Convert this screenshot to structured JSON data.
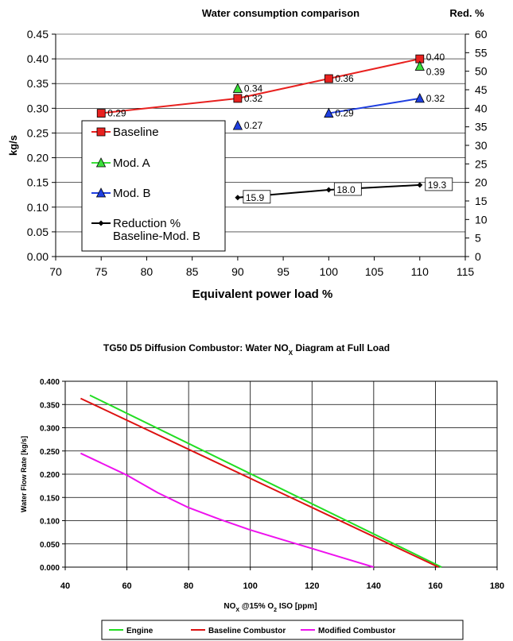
{
  "chart_data": [
    {
      "type": "line",
      "title": "Water consumption comparison",
      "xlabel": "Equivalent power load %",
      "ylabel": "kg/s",
      "y2label": "Red. %",
      "xlim": [
        70,
        115
      ],
      "ylim": [
        0,
        0.45
      ],
      "y2lim": [
        0,
        60
      ],
      "xticks": [
        "70",
        "75",
        "80",
        "85",
        "90",
        "95",
        "100",
        "105",
        "110",
        "115"
      ],
      "yticks": [
        "0.00",
        "0.05",
        "0.10",
        "0.15",
        "0.20",
        "0.25",
        "0.30",
        "0.35",
        "0.40",
        "0.45"
      ],
      "y2ticks": [
        "0",
        "5",
        "10",
        "15",
        "20",
        "25",
        "30",
        "35",
        "40",
        "45",
        "50",
        "55",
        "60"
      ],
      "legend_position": "left",
      "series": [
        {
          "name": "Baseline",
          "color": "#e8211f",
          "marker": "square",
          "axis": "left",
          "points": [
            [
              75,
              0.29
            ],
            [
              90,
              0.32
            ],
            [
              100,
              0.36
            ],
            [
              110,
              0.4
            ]
          ],
          "labels": [
            "0.29",
            "0.32",
            "0.36",
            "0.40"
          ],
          "connected": [
            true,
            true,
            true,
            false
          ]
        },
        {
          "name": "Mod. A",
          "color": "#3adf3a",
          "marker": "triangle",
          "axis": "left",
          "points": [
            [
              90,
              0.34
            ],
            [
              110,
              0.385
            ]
          ],
          "labels": [
            "0.34",
            "0.39"
          ],
          "connected": false
        },
        {
          "name": "Mod. B",
          "color": "#1f3fe0",
          "marker": "triangle",
          "axis": "left",
          "points": [
            [
              90,
              0.265
            ],
            [
              100,
              0.29
            ],
            [
              110,
              0.32
            ]
          ],
          "labels": [
            "0.27",
            "0.29",
            "0.32"
          ],
          "connected": [
            false,
            true,
            true
          ]
        },
        {
          "name": "Reduction %\nBaseline-Mod. B",
          "color": "#000000",
          "marker": "diamond",
          "axis": "right",
          "points": [
            [
              90,
              15.9
            ],
            [
              100,
              18.0
            ],
            [
              110,
              19.3
            ]
          ],
          "labels": [
            "15.9",
            "18.0",
            "19.3"
          ],
          "connected": [
            true,
            true,
            false
          ]
        }
      ]
    },
    {
      "type": "line",
      "title": "TG50 D5 Diffusion Combustor: Water NO",
      "title_sub": "X",
      "title_tail": " Diagram at Full Load",
      "xlabel_parts": [
        "NO",
        "X",
        " @15% O",
        "2",
        " ISO [ppm]"
      ],
      "ylabel": "Water Flow Rate [kg/s]",
      "xlim": [
        40,
        180
      ],
      "ylim": [
        0,
        0.4
      ],
      "xticks": [
        "40",
        "60",
        "80",
        "100",
        "120",
        "140",
        "160",
        "180"
      ],
      "yticks": [
        "0.000",
        "0.050",
        "0.100",
        "0.150",
        "0.200",
        "0.250",
        "0.300",
        "0.350",
        "0.400"
      ],
      "legend_position": "bottom",
      "series": [
        {
          "name": "Engine",
          "color": "#22dd22",
          "points": [
            [
              48,
              0.37
            ],
            [
              162,
              0.0
            ]
          ]
        },
        {
          "name": "Baseline Combustor",
          "color": "#dd1111",
          "points": [
            [
              45,
              0.363
            ],
            [
              161,
              0.0
            ]
          ]
        },
        {
          "name": "Modified Combustor",
          "color": "#ee11ee",
          "points": [
            [
              45,
              0.245
            ],
            [
              60,
              0.198
            ],
            [
              70,
              0.16
            ],
            [
              80,
              0.128
            ],
            [
              90,
              0.103
            ],
            [
              100,
              0.08
            ],
            [
              110,
              0.06
            ],
            [
              120,
              0.04
            ],
            [
              130,
              0.02
            ],
            [
              140,
              0.0
            ]
          ]
        }
      ]
    }
  ]
}
